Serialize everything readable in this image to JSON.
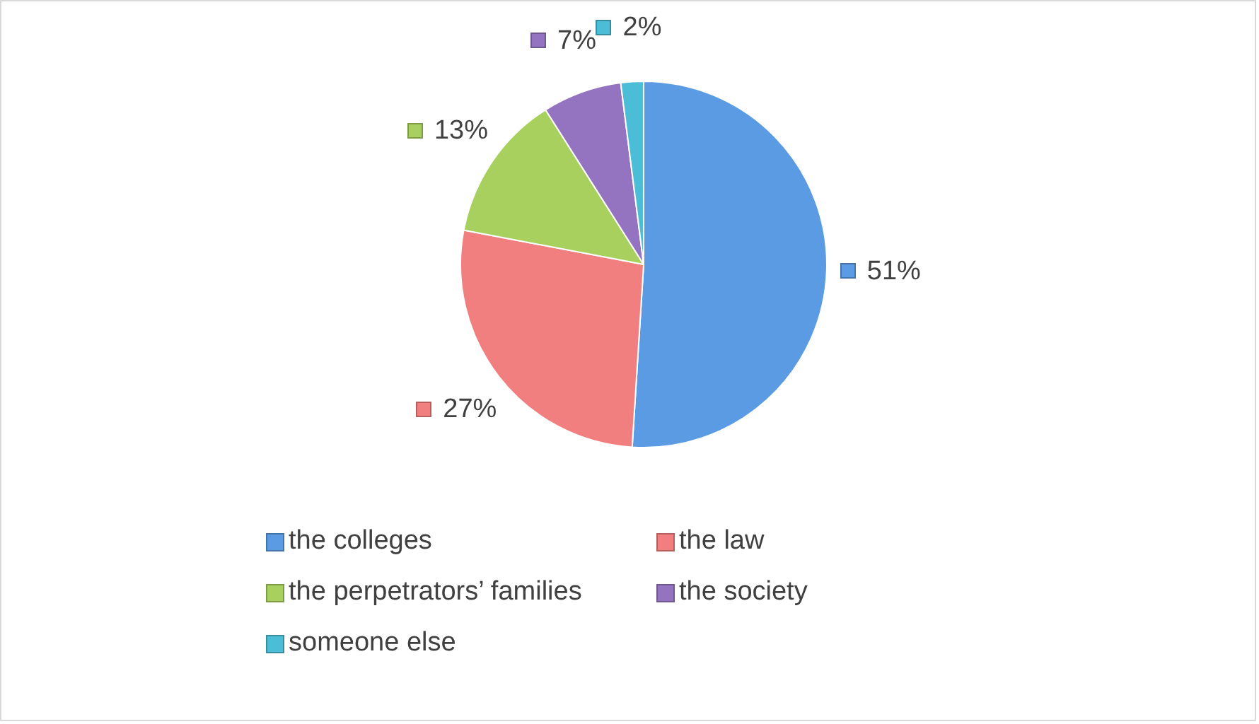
{
  "chart_data": {
    "type": "pie",
    "categories": [
      "the colleges",
      "the law",
      "the perpetrators’ families",
      "the society",
      "someone else"
    ],
    "values": [
      51,
      27,
      13,
      7,
      2
    ],
    "colors": [
      "#5b9be3",
      "#f27f7f",
      "#a8d05e",
      "#9474c0",
      "#4bbdd6"
    ],
    "value_labels": [
      "51%",
      "27%",
      "13%",
      "7%",
      "2%"
    ],
    "legend": "bottom"
  }
}
